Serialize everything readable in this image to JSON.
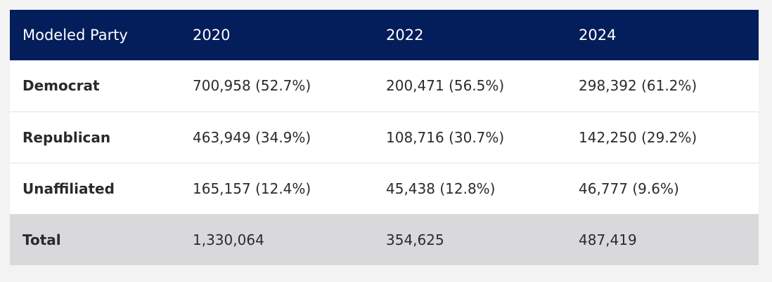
{
  "table": {
    "headers": [
      "Modeled Party",
      "2020",
      "2022",
      "2024"
    ],
    "rows": [
      {
        "party": "Democrat",
        "values": [
          "700,958 (52.7%)",
          "200,471 (56.5%)",
          "298,392 (61.2%)"
        ]
      },
      {
        "party": "Republican",
        "values": [
          "463,949 (34.9%)",
          "108,716 (30.7%)",
          "142,250 (29.2%)"
        ]
      },
      {
        "party": "Unaffiliated",
        "values": [
          "165,157 (12.4%)",
          "45,438 (12.8%)",
          "46,777 (9.6%)"
        ]
      },
      {
        "party": "Total",
        "values": [
          "1,330,064",
          "354,625",
          "487,419"
        ]
      }
    ]
  },
  "colors": {
    "header_bg": "#041d5b",
    "total_bg": "#d9d9db",
    "page_bg": "#f3f3f3"
  }
}
